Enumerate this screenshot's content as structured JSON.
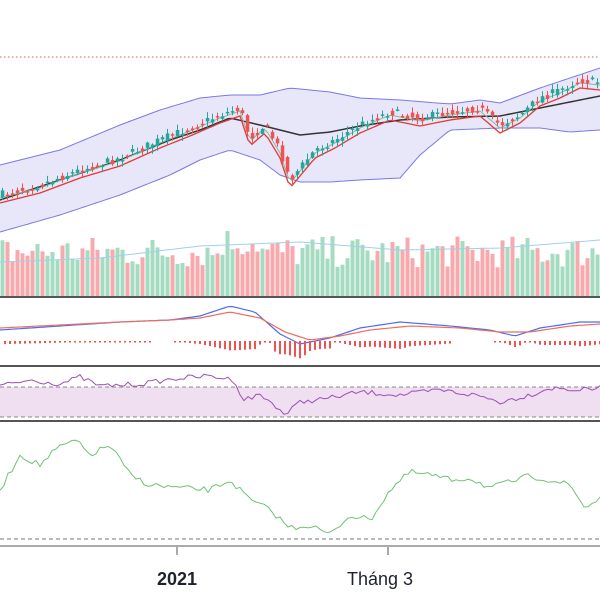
{
  "colors": {
    "up": "#26a69a",
    "down": "#ef5350",
    "upVolume": "#a5dcc1",
    "downVolume": "#f7a9ad",
    "bollingerFill": "#d8d6f5",
    "bollingerLine": "#7b78e6",
    "sma": "#333333",
    "ema": "#e53935",
    "ema2": "#7fbf9f",
    "macd": "#4a6cf7",
    "signal": "#ef6c5e",
    "rsi": "#9c4fb5",
    "rsiBand": "#ecd6ee",
    "momentum": "#6fc275",
    "priceLine": "#f0584d",
    "divider": "#555555",
    "volumeMa": "#9fd0ec"
  },
  "chart_data": [
    {
      "type": "candlestick",
      "title": "",
      "x_ticks": [
        {
          "label": "2021",
          "bold": true
        },
        {
          "label": "Tháng 3",
          "bold": false
        }
      ],
      "series": [
        {
          "name": "",
          "kind": "ohlc",
          "values": []
        },
        {
          "name": "",
          "kind": "bollinger",
          "values": []
        },
        {
          "name": "",
          "kind": "sma",
          "values": []
        },
        {
          "name": "",
          "kind": "ema",
          "values": []
        }
      ]
    },
    {
      "type": "bar",
      "title": "",
      "series": [
        {
          "name": "",
          "kind": "volume",
          "values": []
        }
      ]
    },
    {
      "type": "line",
      "title": "",
      "series": [
        {
          "name": "",
          "kind": "macd",
          "values": []
        },
        {
          "name": "",
          "kind": "signal",
          "values": []
        },
        {
          "name": "",
          "kind": "histogram",
          "values": []
        }
      ]
    },
    {
      "type": "line",
      "title": "",
      "series": [
        {
          "name": "",
          "kind": "rsi",
          "values": []
        }
      ],
      "band": [
        30,
        70
      ]
    },
    {
      "type": "line",
      "title": "",
      "series": [
        {
          "name": "",
          "kind": "oscillator",
          "values": []
        }
      ]
    }
  ]
}
